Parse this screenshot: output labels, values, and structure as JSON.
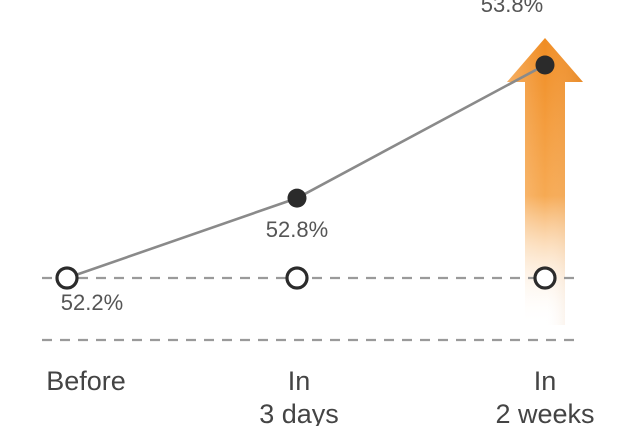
{
  "chart_data": {
    "type": "line",
    "categories": [
      "Before",
      "In\n3 days",
      "In\n2 weeks"
    ],
    "series": [
      {
        "values": [
          52.2,
          52.8,
          53.8
        ]
      }
    ],
    "data_labels": [
      "52.2%",
      "52.8%",
      "53.8%"
    ],
    "baseline": 52.2,
    "ylim": [
      51.7,
      53.8
    ],
    "grid": false,
    "colors": {
      "line": "#8a8a8a",
      "point": "#2b2b2b",
      "arrow": "#f29a38",
      "highlight_label": "#f29a38",
      "label": "#555555",
      "dash": "#9a9a9a"
    }
  }
}
